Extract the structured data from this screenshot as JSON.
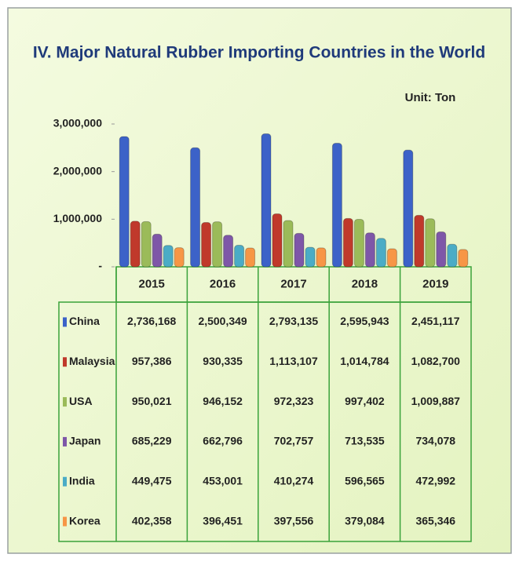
{
  "chart_data": {
    "type": "bar",
    "title": "IV. Major Natural Rubber Importing Countries in the World",
    "unit": "Unit: Ton",
    "categories": [
      "2015",
      "2016",
      "2017",
      "2018",
      "2019"
    ],
    "ylim": [
      0,
      3000000
    ],
    "yticks": [
      {
        "value": 0,
        "label": "-"
      },
      {
        "value": 1000000,
        "label": "1,000,000"
      },
      {
        "value": 2000000,
        "label": "2,000,000"
      },
      {
        "value": 3000000,
        "label": "3,000,000"
      }
    ],
    "series": [
      {
        "name": "China",
        "color": "#3c62c8",
        "values": [
          2736168,
          2500349,
          2793135,
          2595943,
          2451117
        ],
        "value_labels": [
          "2,736,168",
          "2,500,349",
          "2,793,135",
          "2,595,943",
          "2,451,117"
        ]
      },
      {
        "name": "Malaysia",
        "color": "#c0392b",
        "values": [
          957386,
          930335,
          1113107,
          1014784,
          1082700
        ],
        "value_labels": [
          "957,386",
          "930,335",
          "1,113,107",
          "1,014,784",
          "1,082,700"
        ]
      },
      {
        "name": "USA",
        "color": "#9bbb59",
        "values": [
          950021,
          946152,
          972323,
          997402,
          1009887
        ],
        "value_labels": [
          "950,021",
          "946,152",
          "972,323",
          "997,402",
          "1,009,887"
        ]
      },
      {
        "name": "Japan",
        "color": "#7e57a8",
        "values": [
          685229,
          662796,
          702757,
          713535,
          734078
        ],
        "value_labels": [
          "685,229",
          "662,796",
          "702,757",
          "713,535",
          "734,078"
        ]
      },
      {
        "name": "India",
        "color": "#4bacc6",
        "values": [
          449475,
          453001,
          410274,
          596565,
          472992
        ],
        "value_labels": [
          "449,475",
          "453,001",
          "410,274",
          "596,565",
          "472,992"
        ]
      },
      {
        "name": "Korea",
        "color": "#f79646",
        "values": [
          402358,
          396451,
          397556,
          379084,
          365346
        ],
        "value_labels": [
          "402,358",
          "396,451",
          "397,556",
          "379,084",
          "365,346"
        ]
      }
    ]
  }
}
